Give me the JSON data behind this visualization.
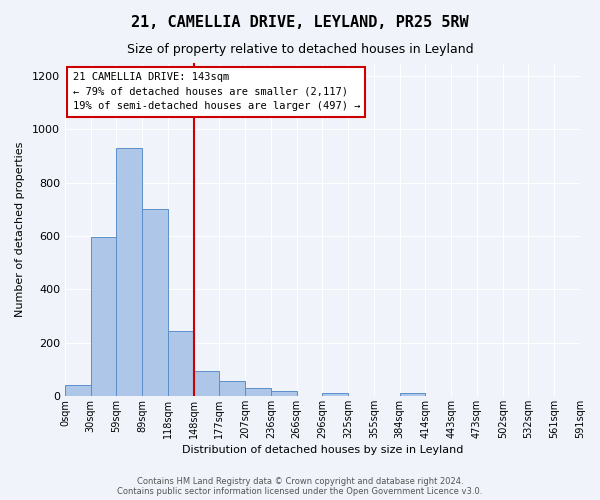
{
  "title": "21, CAMELLIA DRIVE, LEYLAND, PR25 5RW",
  "subtitle": "Size of property relative to detached houses in Leyland",
  "xlabel": "Distribution of detached houses by size in Leyland",
  "ylabel": "Number of detached properties",
  "bin_labels": [
    "0sqm",
    "30sqm",
    "59sqm",
    "89sqm",
    "118sqm",
    "148sqm",
    "177sqm",
    "207sqm",
    "236sqm",
    "266sqm",
    "296sqm",
    "325sqm",
    "355sqm",
    "384sqm",
    "414sqm",
    "443sqm",
    "473sqm",
    "502sqm",
    "532sqm",
    "561sqm",
    "591sqm"
  ],
  "bar_values": [
    40,
    595,
    930,
    700,
    245,
    95,
    55,
    30,
    18,
    0,
    10,
    0,
    0,
    10,
    0,
    0,
    0,
    0,
    0,
    0
  ],
  "bar_color": "#aec6e8",
  "bar_edge_color": "#5b8fc9",
  "vline_x": 5.0,
  "vline_color": "#cc0000",
  "ylim": [
    0,
    1250
  ],
  "yticks": [
    0,
    200,
    400,
    600,
    800,
    1000,
    1200
  ],
  "annotation_text": "21 CAMELLIA DRIVE: 143sqm\n← 79% of detached houses are smaller (2,117)\n19% of semi-detached houses are larger (497) →",
  "annotation_box_color": "#ffffff",
  "annotation_box_edge": "#cc0000",
  "footer_line1": "Contains HM Land Registry data © Crown copyright and database right 2024.",
  "footer_line2": "Contains public sector information licensed under the Open Government Licence v3.0.",
  "background_color": "#f0f4fa",
  "grid_color": "#ffffff"
}
